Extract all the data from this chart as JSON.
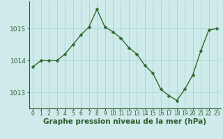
{
  "x": [
    0,
    1,
    2,
    3,
    4,
    5,
    6,
    7,
    8,
    9,
    10,
    11,
    12,
    13,
    14,
    15,
    16,
    17,
    18,
    19,
    20,
    21,
    22,
    23
  ],
  "y": [
    1013.8,
    1014.0,
    1014.0,
    1014.0,
    1014.2,
    1014.5,
    1014.8,
    1015.05,
    1015.6,
    1015.05,
    1014.9,
    1014.7,
    1014.4,
    1014.2,
    1013.85,
    1013.6,
    1013.1,
    1012.9,
    1012.75,
    1013.1,
    1013.55,
    1014.3,
    1014.95,
    1015.0
  ],
  "line_color": "#2d6a2d",
  "marker": "D",
  "marker_size": 2.5,
  "background_color": "#ceeaea",
  "grid_color": "#a8d8d8",
  "xlabel": "Graphe pression niveau de la mer (hPa)",
  "xlabel_color": "#2d5a2d",
  "xlabel_fontsize": 7.5,
  "tick_color": "#2d5a2d",
  "tick_fontsize": 5.5,
  "ytick_fontsize": 6.5,
  "yticks": [
    1013,
    1014,
    1015
  ],
  "ylim": [
    1012.5,
    1015.85
  ],
  "xlim": [
    -0.5,
    23.5
  ]
}
